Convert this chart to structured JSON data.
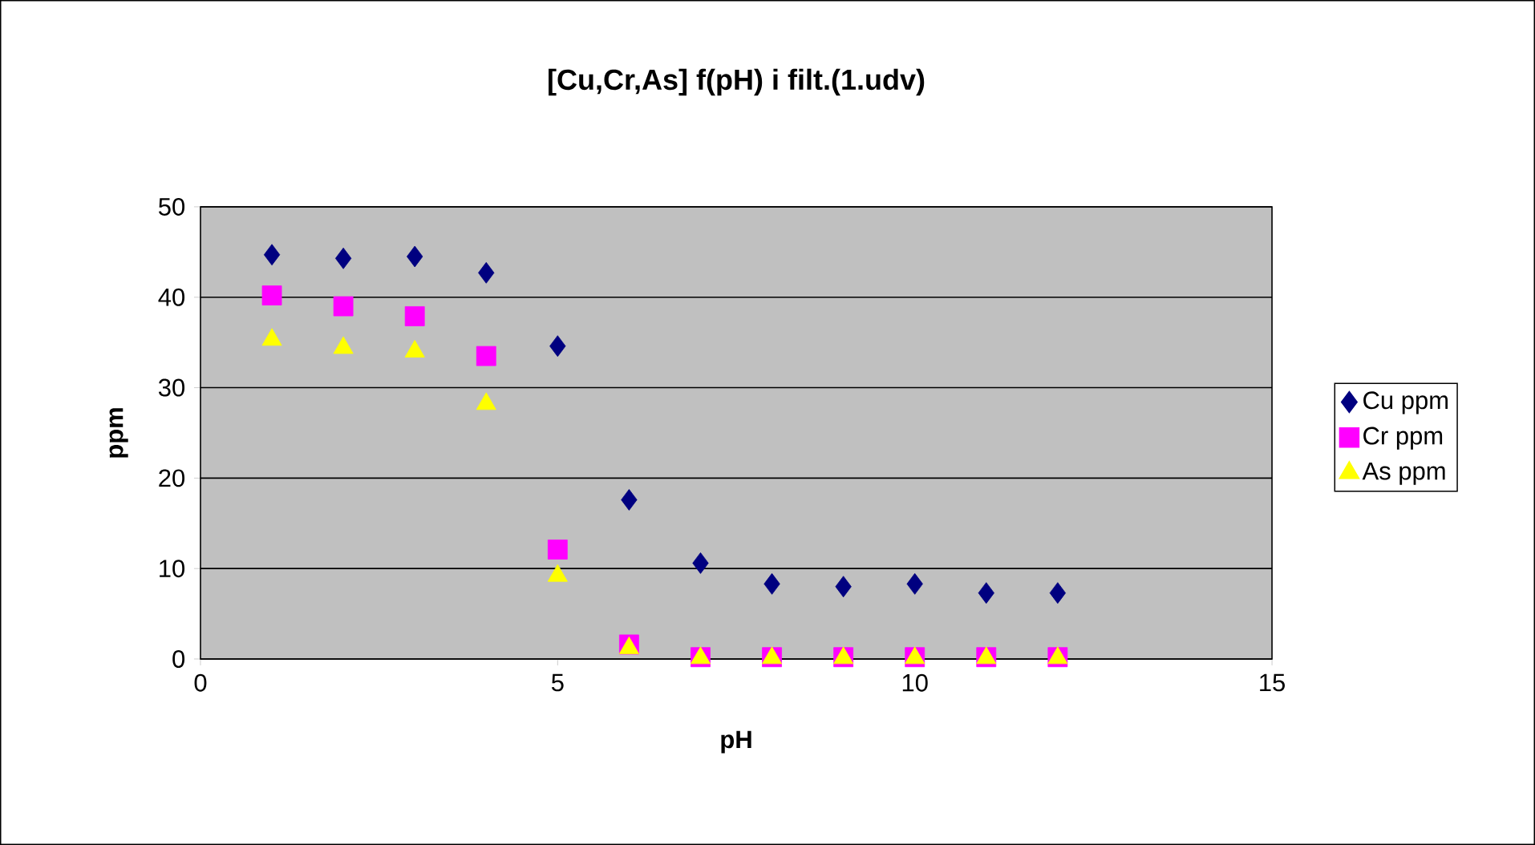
{
  "chart_data": {
    "type": "scatter",
    "title": "[Cu,Cr,As] f(pH) i filt.(1.udv)",
    "xlabel": "pH",
    "ylabel": "ppm",
    "x": [
      1,
      2,
      3,
      4,
      5,
      6,
      7,
      8,
      9,
      10,
      11,
      12
    ],
    "series": [
      {
        "name": "Cu ppm",
        "color": "#000080",
        "marker": "diamond",
        "values": [
          44.7,
          44.3,
          44.5,
          42.7,
          34.6,
          17.6,
          10.6,
          8.3,
          8.0,
          8.3,
          7.3,
          7.3
        ]
      },
      {
        "name": "Cr ppm",
        "color": "#ff00ff",
        "marker": "square",
        "values": [
          40.2,
          39.0,
          37.9,
          33.5,
          12.1,
          1.6,
          0.2,
          0.2,
          0.2,
          0.2,
          0.2,
          0.2
        ]
      },
      {
        "name": "As ppm",
        "color": "#ffff00",
        "marker": "triangle",
        "values": [
          35.3,
          34.4,
          34.0,
          28.2,
          9.2,
          1.2,
          0.1,
          0.1,
          0.1,
          0.1,
          0.1,
          0.1
        ]
      }
    ],
    "xlim": [
      0,
      15
    ],
    "xticks": [
      0,
      5,
      10,
      15
    ],
    "ylim": [
      0,
      50
    ],
    "yticks": [
      0,
      10,
      20,
      30,
      40,
      50
    ],
    "grid": "y",
    "legend": "right"
  }
}
